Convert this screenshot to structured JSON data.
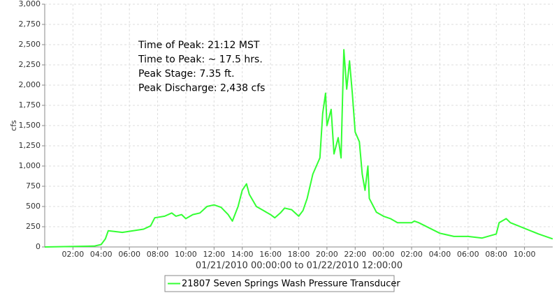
{
  "chart_data": {
    "type": "line",
    "x_label": "01/21/2010 00:00:00 to 01/22/2010 12:00:00",
    "y_label": "cfs",
    "annotations": [
      "Time of Peak: 21:12 MST",
      "Time to Peak: ~ 17.5 hrs.",
      "Peak Stage: 7.35 ft.",
      "Peak Discharge: 2,438 cfs"
    ],
    "x": [
      0,
      3.5,
      4,
      4.3,
      4.5,
      5.5,
      7,
      7.5,
      7.8,
      8.5,
      9,
      9.3,
      9.7,
      10,
      10.5,
      11,
      11.5,
      12,
      12.5,
      13,
      13.3,
      13.7,
      14,
      14.3,
      14.5,
      15,
      15.5,
      16,
      16.3,
      16.7,
      17,
      17.5,
      18,
      18.3,
      18.6,
      19,
      19.5,
      19.7,
      19.9,
      20,
      20.3,
      20.5,
      20.8,
      21,
      21.1,
      21.2,
      21.4,
      21.6,
      21.8,
      22,
      22.3,
      22.5,
      22.7,
      22.9,
      23,
      23.3,
      23.5,
      24,
      24.5,
      25,
      26,
      26.2,
      26.5,
      28,
      29,
      30,
      31,
      32,
      32.2,
      32.7,
      33,
      35,
      36
    ],
    "series": [
      {
        "name": "21807 Seven Springs Wash Pressure Transducer",
        "color": "#33ff33",
        "values": [
          0,
          10,
          30,
          100,
          200,
          180,
          220,
          260,
          360,
          380,
          420,
          380,
          400,
          350,
          400,
          420,
          500,
          520,
          490,
          400,
          320,
          500,
          700,
          780,
          650,
          500,
          450,
          400,
          360,
          420,
          480,
          460,
          380,
          450,
          600,
          900,
          1100,
          1650,
          1900,
          1500,
          1700,
          1150,
          1350,
          1100,
          1800,
          2438,
          1950,
          2300,
          1900,
          1420,
          1300,
          900,
          700,
          1000,
          600,
          500,
          430,
          380,
          350,
          300,
          300,
          320,
          300,
          170,
          130,
          130,
          110,
          160,
          300,
          350,
          300,
          160,
          100
        ]
      }
    ],
    "xlim": [
      0,
      36
    ],
    "xticks": [
      {
        "value": 2,
        "label": "02:00"
      },
      {
        "value": 4,
        "label": "04:00"
      },
      {
        "value": 6,
        "label": "06:00"
      },
      {
        "value": 8,
        "label": "08:00"
      },
      {
        "value": 10,
        "label": "10:00"
      },
      {
        "value": 12,
        "label": "12:00"
      },
      {
        "value": 14,
        "label": "14:00"
      },
      {
        "value": 16,
        "label": "16:00"
      },
      {
        "value": 18,
        "label": "18:00"
      },
      {
        "value": 20,
        "label": "20:00"
      },
      {
        "value": 22,
        "label": "22:00"
      },
      {
        "value": 24,
        "label": "00:00"
      },
      {
        "value": 26,
        "label": "02:00"
      },
      {
        "value": 28,
        "label": "04:00"
      },
      {
        "value": 30,
        "label": "06:00"
      },
      {
        "value": 32,
        "label": "08:00"
      },
      {
        "value": 34,
        "label": "10:00"
      }
    ],
    "ylim": [
      0,
      3000
    ],
    "yticks": [
      0,
      250,
      500,
      750,
      {
        "value": 1000,
        "label": "1,000"
      },
      {
        "value": 1250,
        "label": "1,250"
      },
      {
        "value": 1500,
        "label": "1,500"
      },
      {
        "value": 1750,
        "label": "1,750"
      },
      {
        "value": 2000,
        "label": "2,000"
      },
      {
        "value": 2250,
        "label": "2,250"
      },
      {
        "value": 2500,
        "label": "2,500"
      },
      {
        "value": 2750,
        "label": "2,750"
      },
      {
        "value": 3000,
        "label": "3,000"
      }
    ],
    "grid": true
  }
}
